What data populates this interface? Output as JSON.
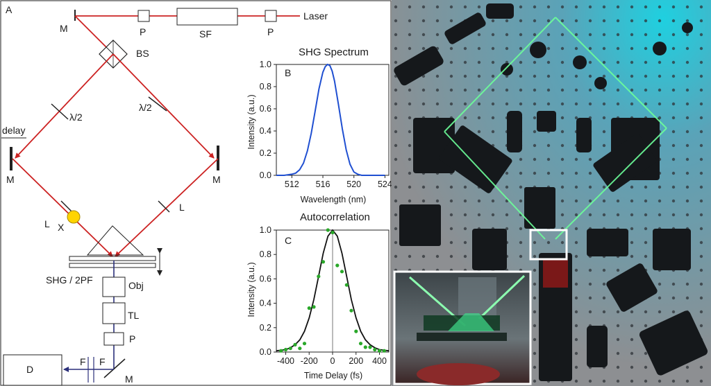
{
  "panel_a": {
    "label": "A",
    "laser": "Laser",
    "mirror": "M",
    "polarizer": "P",
    "spatial_filter": "SF",
    "beam_splitter": "BS",
    "half_wave": "λ/2",
    "delay": "delay",
    "lens": "L",
    "crystal": "X",
    "sample": "SHG / 2PF",
    "objective": "Obj",
    "tube_lens": "TL",
    "filter": "F",
    "detector": "D",
    "colors": {
      "beam": "#cc2222",
      "detection_beam": "#2a2f7a",
      "crystal": "#ffd400"
    }
  },
  "photo": {
    "description_icon": "optical-table-photo",
    "colors": {
      "table": "#9aa3a6",
      "cyan_glow": "#1fc8d8",
      "green_beam": "#6dff9a"
    }
  },
  "chart_data": [
    {
      "type": "line",
      "panel_label": "B",
      "title": "SHG Spectrum",
      "xlabel": "Wavelength (nm)",
      "ylabel": "Intensity (a.u.)",
      "xlim": [
        510,
        524.5
      ],
      "ylim": [
        0,
        1.0
      ],
      "xticks": [
        512,
        516,
        520,
        524
      ],
      "yticks": [
        0.0,
        0.2,
        0.4,
        0.6,
        0.8,
        1.0
      ],
      "ytick_labels": [
        "0.0",
        "0.2",
        "0.4",
        "0.6",
        "0.8",
        "1.0"
      ],
      "color": "#1f4fd1",
      "series": [
        {
          "x": [
            510.0,
            511.0,
            512.0,
            512.5,
            513.0,
            513.5,
            514.0,
            514.5,
            515.0,
            515.5,
            516.0,
            516.3,
            516.6,
            516.9,
            517.2,
            517.5,
            518.0,
            518.5,
            519.0,
            519.5,
            520.0,
            520.5,
            521.0,
            522.0,
            523.0,
            524.0
          ],
          "y": [
            0.0,
            0.0,
            0.01,
            0.02,
            0.05,
            0.11,
            0.22,
            0.38,
            0.58,
            0.78,
            0.93,
            0.98,
            1.0,
            0.99,
            0.94,
            0.85,
            0.64,
            0.42,
            0.23,
            0.1,
            0.03,
            0.01,
            0.0,
            0.0,
            0.0,
            0.0
          ]
        }
      ]
    },
    {
      "type": "scatter",
      "panel_label": "C",
      "title": "Autocorrelation",
      "xlabel": "Time Delay (fs)",
      "ylabel": "Intensity (a.u.)",
      "xlim": [
        -480,
        480
      ],
      "ylim": [
        0,
        1.0
      ],
      "xticks": [
        -400,
        -200,
        0,
        200,
        400
      ],
      "yticks": [
        0.0,
        0.2,
        0.4,
        0.6,
        0.8,
        1.0
      ],
      "ytick_labels": [
        "0.0",
        "0.2",
        "0.4",
        "0.6",
        "0.8",
        "1.0"
      ],
      "fit_color": "#111111",
      "point_color": "#2aa82a",
      "fit": {
        "x": [
          -480,
          -440,
          -400,
          -360,
          -320,
          -280,
          -240,
          -200,
          -160,
          -120,
          -80,
          -40,
          0,
          40,
          80,
          120,
          160,
          200,
          240,
          280,
          320,
          360,
          400,
          440,
          480
        ],
        "y": [
          0.01,
          0.015,
          0.02,
          0.035,
          0.06,
          0.1,
          0.17,
          0.28,
          0.43,
          0.62,
          0.81,
          0.95,
          1.0,
          0.95,
          0.81,
          0.62,
          0.43,
          0.28,
          0.17,
          0.1,
          0.06,
          0.035,
          0.02,
          0.015,
          0.01
        ]
      },
      "points": {
        "x": [
          -440,
          -400,
          -360,
          -320,
          -280,
          -240,
          -200,
          -160,
          -120,
          -80,
          -40,
          0,
          40,
          80,
          120,
          160,
          200,
          240,
          280,
          320,
          360,
          400,
          440
        ],
        "y": [
          0.01,
          0.02,
          0.03,
          0.06,
          0.03,
          0.07,
          0.36,
          0.37,
          0.62,
          0.74,
          1.0,
          0.98,
          0.71,
          0.66,
          0.55,
          0.34,
          0.17,
          0.07,
          0.04,
          0.04,
          0.02,
          0.01,
          0.01
        ]
      }
    }
  ]
}
